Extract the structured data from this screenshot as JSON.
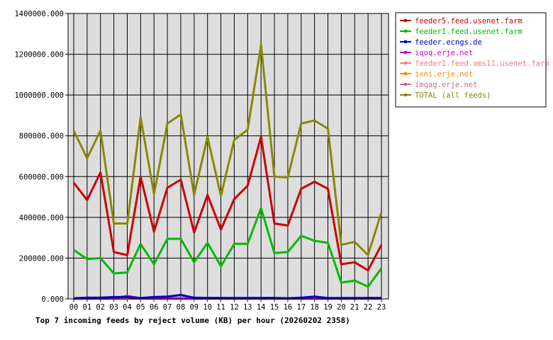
{
  "chart_data": {
    "type": "line",
    "title": "Top 7 incoming feeds by reject volume (KB) per hour (20260202 2358)",
    "xlabel": "",
    "ylabel": "",
    "ylim": [
      0,
      1400000
    ],
    "yticks": [
      0,
      200000,
      400000,
      600000,
      800000,
      1000000,
      1200000,
      1400000
    ],
    "ytick_labels": [
      "0.000",
      "200000.000",
      "400000.000",
      "600000.000",
      "800000.000",
      "1000000.000",
      "1200000.000",
      "1400000.000"
    ],
    "x": [
      "00",
      "01",
      "02",
      "03",
      "04",
      "05",
      "06",
      "07",
      "08",
      "09",
      "10",
      "11",
      "12",
      "13",
      "14",
      "15",
      "16",
      "17",
      "18",
      "19",
      "20",
      "21",
      "22",
      "23"
    ],
    "grid": true,
    "legend_position": "right",
    "series": [
      {
        "name": "feeder5.feed.usenet.farm",
        "color": "#cc0000",
        "values": [
          570000,
          485000,
          620000,
          230000,
          215000,
          600000,
          330000,
          545000,
          585000,
          325000,
          510000,
          340000,
          490000,
          555000,
          795000,
          370000,
          360000,
          540000,
          575000,
          540000,
          170000,
          180000,
          140000,
          265000
        ]
      },
      {
        "name": "feeder1.feed.usenet.farm",
        "color": "#00bb00",
        "values": [
          240000,
          195000,
          200000,
          125000,
          130000,
          270000,
          170000,
          295000,
          295000,
          180000,
          275000,
          160000,
          270000,
          270000,
          445000,
          225000,
          230000,
          310000,
          285000,
          275000,
          80000,
          90000,
          60000,
          150000
        ]
      },
      {
        "name": "feeder.ecngs.de",
        "color": "#0000cc",
        "values": [
          3000,
          6000,
          6000,
          9000,
          9000,
          4000,
          9000,
          11000,
          19000,
          6000,
          5000,
          5000,
          4000,
          5000,
          5000,
          5000,
          3000,
          6000,
          11000,
          4000,
          4000,
          4000,
          5000,
          5000
        ]
      },
      {
        "name": "iqoq.erje.net",
        "color": "#cc00cc",
        "values": [
          2000,
          2000,
          3000,
          3000,
          15000,
          3000,
          3000,
          3000,
          3000,
          2000,
          2000,
          2000,
          2000,
          2000,
          2000,
          2000,
          2000,
          2000,
          2000,
          2000,
          2000,
          2000,
          2000,
          2000
        ]
      },
      {
        "name": "feeder1.feed.ams11.usenet.farm",
        "color": "#ff7777",
        "values": [
          1000,
          1000,
          1000,
          1000,
          2000,
          1000,
          1000,
          1000,
          1000,
          1000,
          1000,
          1000,
          1000,
          1000,
          1000,
          1000,
          1000,
          1000,
          1000,
          1000,
          1000,
          1000,
          1000,
          1000
        ]
      },
      {
        "name": "ixni.erje.net",
        "color": "#ff8800",
        "values": [
          1000,
          1000,
          1000,
          1000,
          1000,
          1000,
          1000,
          1000,
          1000,
          1000,
          1000,
          1000,
          1000,
          1000,
          1000,
          1000,
          1000,
          1000,
          1000,
          1000,
          1000,
          1000,
          1000,
          1000
        ]
      },
      {
        "name": "imqag.erje.net",
        "color": "#cc6688",
        "values": [
          1000,
          1000,
          1000,
          1000,
          1000,
          1000,
          1000,
          1000,
          1000,
          1000,
          1000,
          1000,
          1000,
          1000,
          1000,
          1000,
          1000,
          1000,
          1000,
          1000,
          1000,
          1000,
          1000,
          1000
        ]
      },
      {
        "name": "TOTAL (all feeds)",
        "color": "#888800",
        "values": [
          825000,
          690000,
          825000,
          370000,
          370000,
          890000,
          515000,
          860000,
          905000,
          510000,
          795000,
          505000,
          780000,
          830000,
          1245000,
          600000,
          595000,
          860000,
          875000,
          835000,
          265000,
          280000,
          215000,
          425000
        ]
      }
    ]
  }
}
